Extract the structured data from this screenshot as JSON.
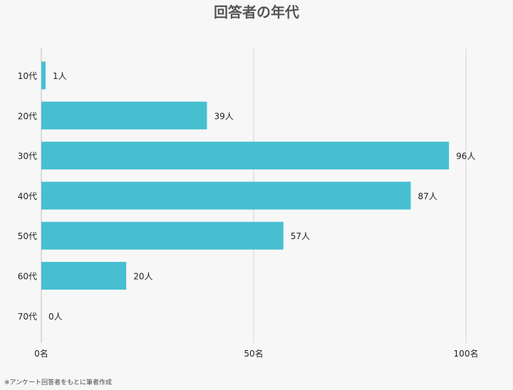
{
  "chart_data": {
    "type": "bar",
    "orientation": "horizontal",
    "title": "回答者の年代",
    "categories": [
      "10代",
      "20代",
      "30代",
      "40代",
      "50代",
      "60代",
      "70代"
    ],
    "values": [
      1,
      39,
      96,
      87,
      57,
      20,
      0
    ],
    "value_labels": [
      "1人",
      "39人",
      "96人",
      "87人",
      "57人",
      "20人",
      "0人"
    ],
    "xlim": [
      0,
      100
    ],
    "xticks": [
      0,
      50,
      100
    ],
    "xtick_labels": [
      "0名",
      "50名",
      "100名"
    ],
    "grid": true,
    "bar_color": "#48bfd1",
    "xlabel": "",
    "ylabel": ""
  },
  "footnote": "※アンケート回答者をもとに筆者作成"
}
